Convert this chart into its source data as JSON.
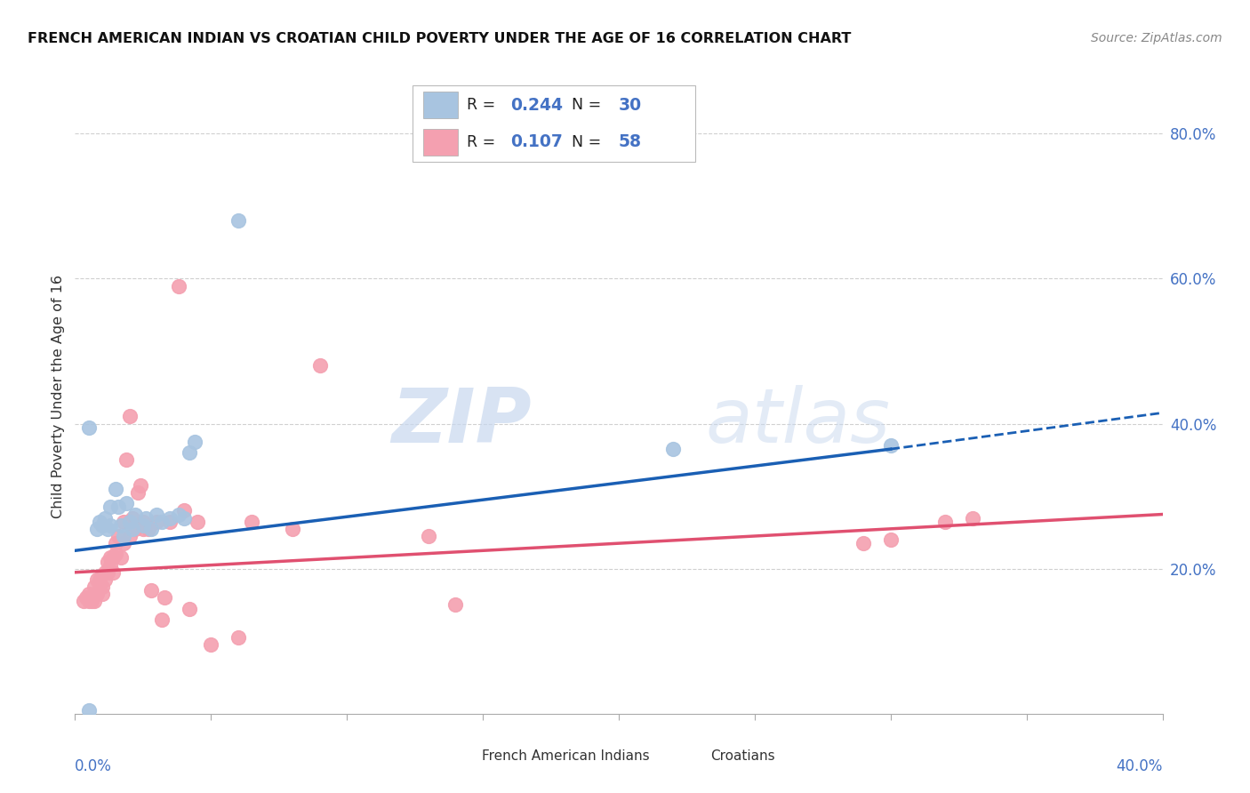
{
  "title": "FRENCH AMERICAN INDIAN VS CROATIAN CHILD POVERTY UNDER THE AGE OF 16 CORRELATION CHART",
  "source": "Source: ZipAtlas.com",
  "ylabel": "Child Poverty Under the Age of 16",
  "ytick_labels": [
    "20.0%",
    "40.0%",
    "60.0%",
    "80.0%"
  ],
  "ytick_values": [
    0.2,
    0.4,
    0.6,
    0.8
  ],
  "xlim": [
    0.0,
    0.4
  ],
  "ylim": [
    0.0,
    0.875
  ],
  "legend_blue_label": "French American Indians",
  "legend_pink_label": "Croatians",
  "R_blue": "0.244",
  "N_blue": "30",
  "R_pink": "0.107",
  "N_pink": "58",
  "blue_scatter_color": "#a8c4e0",
  "pink_scatter_color": "#f4a0b0",
  "blue_line_color": "#1a5fb4",
  "pink_line_color": "#e05070",
  "label_color": "#4472c4",
  "text_color": "#333333",
  "value_color": "#4472c4",
  "grid_color": "#d0d0d0",
  "trend_blue_x0": 0.0,
  "trend_blue_y0": 0.225,
  "trend_blue_x1": 0.3,
  "trend_blue_y1": 0.365,
  "trend_blue_dash_x0": 0.3,
  "trend_blue_dash_y0": 0.365,
  "trend_blue_dash_x1": 0.4,
  "trend_blue_dash_y1": 0.415,
  "trend_pink_x0": 0.0,
  "trend_pink_y0": 0.195,
  "trend_pink_x1": 0.4,
  "trend_pink_y1": 0.275,
  "watermark_zip": "ZIP",
  "watermark_atlas": "atlas",
  "blue_scatter_x": [
    0.005,
    0.008,
    0.009,
    0.01,
    0.011,
    0.012,
    0.013,
    0.013,
    0.015,
    0.016,
    0.017,
    0.018,
    0.019,
    0.02,
    0.021,
    0.022,
    0.025,
    0.026,
    0.028,
    0.03,
    0.032,
    0.035,
    0.038,
    0.04,
    0.042,
    0.044,
    0.005,
    0.06,
    0.22,
    0.3
  ],
  "blue_scatter_y": [
    0.395,
    0.255,
    0.265,
    0.26,
    0.27,
    0.255,
    0.285,
    0.26,
    0.31,
    0.285,
    0.26,
    0.245,
    0.29,
    0.265,
    0.255,
    0.275,
    0.26,
    0.27,
    0.255,
    0.275,
    0.265,
    0.27,
    0.275,
    0.27,
    0.36,
    0.375,
    0.005,
    0.68,
    0.365,
    0.37
  ],
  "pink_scatter_x": [
    0.003,
    0.004,
    0.005,
    0.005,
    0.006,
    0.007,
    0.007,
    0.008,
    0.008,
    0.009,
    0.009,
    0.01,
    0.01,
    0.011,
    0.011,
    0.012,
    0.012,
    0.013,
    0.013,
    0.014,
    0.014,
    0.015,
    0.015,
    0.016,
    0.017,
    0.018,
    0.018,
    0.019,
    0.02,
    0.02,
    0.021,
    0.022,
    0.023,
    0.024,
    0.025,
    0.025,
    0.026,
    0.027,
    0.028,
    0.03,
    0.032,
    0.033,
    0.035,
    0.038,
    0.04,
    0.042,
    0.045,
    0.05,
    0.06,
    0.065,
    0.08,
    0.09,
    0.13,
    0.14,
    0.29,
    0.3,
    0.32,
    0.33
  ],
  "pink_scatter_y": [
    0.155,
    0.16,
    0.155,
    0.165,
    0.155,
    0.155,
    0.175,
    0.165,
    0.185,
    0.175,
    0.185,
    0.175,
    0.165,
    0.185,
    0.195,
    0.195,
    0.21,
    0.215,
    0.205,
    0.215,
    0.195,
    0.22,
    0.235,
    0.245,
    0.215,
    0.265,
    0.235,
    0.35,
    0.41,
    0.245,
    0.27,
    0.255,
    0.305,
    0.315,
    0.255,
    0.265,
    0.26,
    0.255,
    0.17,
    0.265,
    0.13,
    0.16,
    0.265,
    0.59,
    0.28,
    0.145,
    0.265,
    0.095,
    0.105,
    0.265,
    0.255,
    0.48,
    0.245,
    0.15,
    0.235,
    0.24,
    0.265,
    0.27
  ]
}
